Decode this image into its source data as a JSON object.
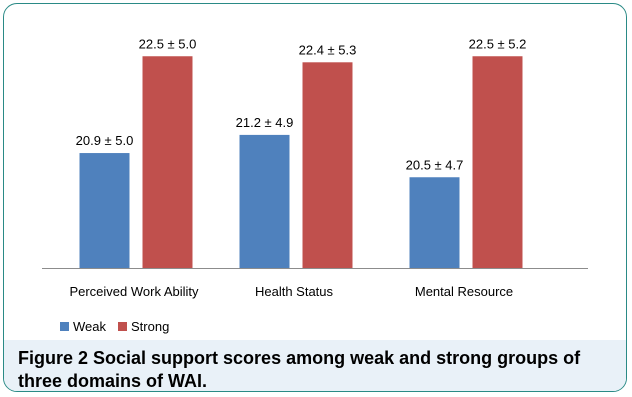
{
  "chart_data": {
    "type": "bar",
    "categories": [
      "Perceived Work Ability",
      "Health Status",
      "Mental Resource"
    ],
    "series": [
      {
        "name": "Weak",
        "color": "#4f81bd",
        "values": [
          20.9,
          21.2,
          20.5
        ],
        "labels": [
          "20.9 ± 5.0",
          "21.2 ± 4.9",
          "20.5 ± 4.7"
        ]
      },
      {
        "name": "Strong",
        "color": "#c0504d",
        "values": [
          22.5,
          22.4,
          22.5
        ],
        "labels": [
          "22.5 ± 5.0",
          "22.4 ± 5.3",
          "22.5 ± 5.2"
        ]
      }
    ],
    "ylim": [
      19.0,
      23.0
    ],
    "grid": false,
    "legend_position": "bottom-left"
  },
  "caption": {
    "label": "Figure 2",
    "text": " Social support scores among weak and strong groups of three domains of WAI."
  }
}
